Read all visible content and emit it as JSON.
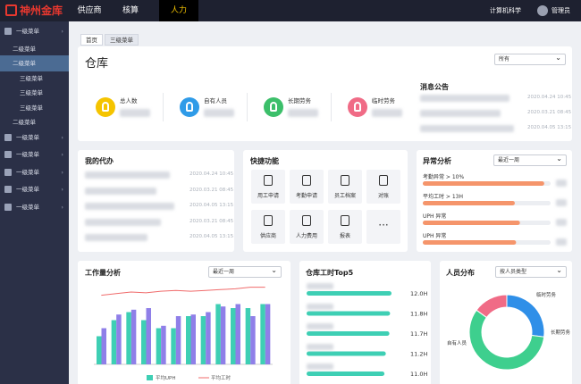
{
  "top_nav": {
    "logo": "神州金库",
    "menu": [
      "供应商",
      "核算",
      "人力"
    ],
    "active": 2,
    "org": "计算机科学",
    "user": "管理员"
  },
  "sidebar": {
    "items": [
      {
        "label": "一级菜单",
        "level": 1
      },
      {
        "label": "二级菜单",
        "level": 2
      },
      {
        "label": "二级菜单",
        "level": 2
      },
      {
        "label": "三级菜单",
        "level": 3
      },
      {
        "label": "三级菜单",
        "level": 3
      },
      {
        "label": "三级菜单",
        "level": 3
      },
      {
        "label": "二级菜单",
        "level": 2
      },
      {
        "label": "一级菜单",
        "level": 1
      },
      {
        "label": "一级菜单",
        "level": 1
      },
      {
        "label": "一级菜单",
        "level": 1
      },
      {
        "label": "一级菜单",
        "level": 1
      },
      {
        "label": "一级菜单",
        "level": 1
      }
    ],
    "active": 2
  },
  "tabs": {
    "items": [
      "首页",
      "三级菜单"
    ],
    "active": 0
  },
  "warehouse": {
    "title": "仓库",
    "filter": "所有",
    "stats": [
      {
        "label": "总人数",
        "color": "#f5c400"
      },
      {
        "label": "自有人员",
        "color": "#2f9be8"
      },
      {
        "label": "长期劳务",
        "color": "#3cbf6a"
      },
      {
        "label": "临时劳务",
        "color": "#f06b86"
      }
    ],
    "notice_title": "消息公告",
    "notices": [
      "2020.04.24 10:45",
      "2020.03.21 08:45",
      "2020.04.05 13:15"
    ]
  },
  "todo": {
    "title": "我的代办",
    "dates": [
      "2020.04.24 10:45",
      "2020.03.21 08:45",
      "2020.04.05 13:15",
      "2020.03.21 08:45",
      "2020.04.05 13:15"
    ]
  },
  "shortcuts": {
    "title": "快捷功能",
    "items": [
      "用工申请",
      "考勤申请",
      "员工档案",
      "对账",
      "供应商",
      "人力费用",
      "报表",
      "···"
    ]
  },
  "anomaly": {
    "title": "异常分析",
    "filter": "最近一周",
    "color": "#f5956b",
    "items": [
      {
        "label": "考勤异常 > 10%",
        "progress": 95
      },
      {
        "label": "平均工时 > 13H",
        "progress": 72
      },
      {
        "label": "UPH 异常",
        "progress": 76
      },
      {
        "label": "UPH 异常",
        "progress": 73
      }
    ]
  },
  "workload": {
    "title": "工作量分析",
    "filter": "最近一周",
    "chart_data": {
      "type": "bar",
      "ylim": [
        0,
        100
      ],
      "series": [
        {
          "name": "平均UPH",
          "color": "#3ecfb4",
          "values": [
            35,
            55,
            65,
            55,
            45,
            45,
            60,
            60,
            75,
            70,
            70,
            75
          ]
        },
        {
          "color": "#8f7fe8",
          "values": [
            45,
            62,
            68,
            70,
            48,
            60,
            62,
            65,
            72,
            75,
            60,
            75
          ]
        },
        {
          "name": "平均工时",
          "color": "#f06b6b",
          "type": "line",
          "values": [
            86,
            88,
            90,
            89,
            91,
            92,
            91,
            92,
            93,
            94,
            96,
            96
          ]
        }
      ]
    }
  },
  "top5": {
    "title": "仓库工时Top5",
    "chart_data": {
      "type": "bar",
      "color": "#3ecfb4",
      "values": [
        12.0,
        11.8,
        11.7,
        11.2,
        11.0
      ],
      "value_labels": [
        "12.0H",
        "11.8H",
        "11.7H",
        "11.2H",
        "11.0H"
      ]
    }
  },
  "distribution": {
    "title": "人员分布",
    "filter": "按人员类型",
    "chart_data": {
      "type": "pie",
      "categories": [
        "自有人员",
        "长期劳务",
        "临时劳务"
      ],
      "values": [
        58,
        27,
        15
      ],
      "colors": [
        "#3ecf8e",
        "#2f8fe8",
        "#f06b86"
      ]
    }
  }
}
